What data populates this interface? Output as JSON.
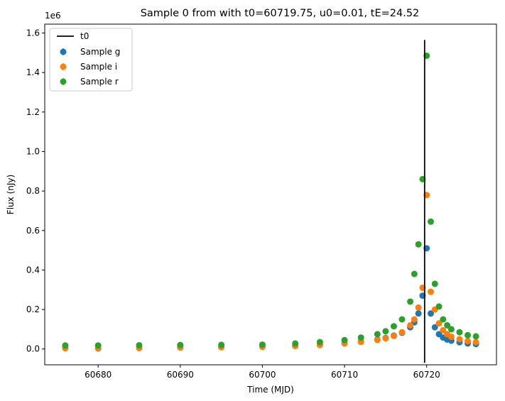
{
  "chart_data": {
    "type": "scatter",
    "title": "Sample 0 from with t0=60719.75, u0=0.01, tE=24.52",
    "xlabel": "Time (MJD)",
    "ylabel": "Flux (nJy)",
    "y_offset_label": "1e6",
    "xlim": [
      60673.5,
      60728.5
    ],
    "ylim": [
      -0.08,
      1.645
    ],
    "y_multiplier": 1000000,
    "x_ticks": [
      60680,
      60690,
      60700,
      60710,
      60720
    ],
    "x_tick_labels": [
      "60680",
      "60690",
      "60700",
      "60710",
      "60720"
    ],
    "y_ticks": [
      0.0,
      0.2,
      0.4,
      0.6,
      0.8,
      1.0,
      1.2,
      1.4,
      1.6
    ],
    "y_tick_labels": [
      "0.0",
      "0.2",
      "0.4",
      "0.6",
      "0.8",
      "1.0",
      "1.2",
      "1.4",
      "1.6"
    ],
    "grid": false,
    "legend_position": "upper-left",
    "vline": {
      "name": "t0",
      "x": 60719.75,
      "y_range": [
        -0.07,
        1.565
      ],
      "color": "#000000"
    },
    "series": [
      {
        "name": "Sample g",
        "color": "#1f77b4",
        "x": [
          60676,
          60680,
          60685,
          60690,
          60695,
          60700,
          60704,
          60707,
          60710,
          60712,
          60714,
          60715,
          60716,
          60717,
          60718,
          60718.5,
          60719,
          60719.5,
          60720,
          60720.5,
          60721,
          60721.5,
          60722,
          60722.5,
          60723,
          60724,
          60725,
          60726
        ],
        "y": [
          0.005,
          0.003,
          0.005,
          0.008,
          0.009,
          0.012,
          0.016,
          0.022,
          0.03,
          0.038,
          0.048,
          0.056,
          0.068,
          0.082,
          0.11,
          0.135,
          0.18,
          0.27,
          0.51,
          0.18,
          0.11,
          0.075,
          0.058,
          0.048,
          0.042,
          0.034,
          0.028,
          0.025
        ]
      },
      {
        "name": "Sample i",
        "color": "#ff7f0e",
        "x": [
          60676,
          60680,
          60685,
          60690,
          60695,
          60700,
          60704,
          60707,
          60710,
          60712,
          60714,
          60715,
          60716,
          60717,
          60718,
          60718.5,
          60719,
          60719.5,
          60720,
          60720.5,
          60721,
          60721.5,
          60722,
          60722.5,
          60723,
          60724,
          60725,
          60726
        ],
        "y": [
          0.004,
          0.004,
          0.005,
          0.007,
          0.009,
          0.011,
          0.015,
          0.02,
          0.028,
          0.036,
          0.046,
          0.054,
          0.066,
          0.085,
          0.12,
          0.15,
          0.21,
          0.31,
          0.78,
          0.29,
          0.2,
          0.13,
          0.095,
          0.075,
          0.062,
          0.05,
          0.04,
          0.035
        ]
      },
      {
        "name": "Sample r",
        "color": "#2ca02c",
        "x": [
          60676,
          60680,
          60685,
          60690,
          60695,
          60700,
          60704,
          60707,
          60710,
          60712,
          60714,
          60715,
          60716,
          60717,
          60718,
          60718.5,
          60719,
          60719.5,
          60720,
          60720.5,
          60721,
          60721.5,
          60722,
          60722.5,
          60723,
          60724,
          60725,
          60726
        ],
        "y": [
          0.018,
          0.018,
          0.019,
          0.02,
          0.021,
          0.022,
          0.028,
          0.035,
          0.045,
          0.058,
          0.075,
          0.09,
          0.115,
          0.15,
          0.24,
          0.38,
          0.53,
          0.86,
          1.485,
          0.645,
          0.33,
          0.215,
          0.15,
          0.12,
          0.1,
          0.085,
          0.07,
          0.064
        ]
      }
    ]
  }
}
